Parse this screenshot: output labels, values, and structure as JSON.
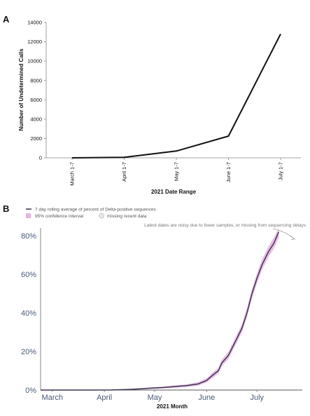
{
  "panels": {
    "a_letter": "A",
    "b_letter": "B"
  },
  "chart_data": [
    {
      "id": "A",
      "type": "line",
      "title": "",
      "xlabel": "2021 Date Range",
      "ylabel": "Number of Undetermined Calls",
      "categories": [
        "March 1-7",
        "April 1-7",
        "May 1-7",
        "June 1-7",
        "July 1-7"
      ],
      "series": [
        {
          "values": [
            0,
            50,
            700,
            2250,
            12800
          ],
          "color": "#111111"
        }
      ],
      "ylim": [
        0,
        14000
      ],
      "yticks": [
        0,
        2000,
        4000,
        6000,
        8000,
        10000,
        12000,
        14000
      ],
      "grid": false
    },
    {
      "id": "B",
      "type": "line",
      "title": "",
      "xlabel": "2021 Month",
      "ylabel": "",
      "xlim": [
        "2021-02-22",
        "2021-07-28"
      ],
      "xticks": [
        {
          "date": "2021-03-01",
          "label": "March"
        },
        {
          "date": "2021-04-01",
          "label": "April"
        },
        {
          "date": "2021-05-01",
          "label": "May"
        },
        {
          "date": "2021-06-01",
          "label": "June"
        },
        {
          "date": "2021-07-01",
          "label": "July"
        }
      ],
      "ylim": [
        0,
        84
      ],
      "yticks": [
        {
          "value": 0,
          "label": "0%"
        },
        {
          "value": 20,
          "label": "20%"
        },
        {
          "value": 40,
          "label": "40%"
        },
        {
          "value": 60,
          "label": "60%"
        },
        {
          "value": 80,
          "label": "80%"
        }
      ],
      "legend": {
        "placement": "top-left",
        "items": [
          {
            "label": "7 day rolling average of percent of Delta-positive sequences",
            "symbol": "line",
            "color": "#3a3550"
          },
          {
            "label": "95% confidence interval",
            "symbol": "swatch",
            "color": "#e6b3e0"
          },
          {
            "label": "missing recent data",
            "symbol": "hatch",
            "color": "#bbbbbb"
          }
        ]
      },
      "annotation": "Latest dates are noisy due to fewer samples, or missing from sequencing delays",
      "colors": {
        "line": "#3a3550",
        "ci": "#e6b3e0",
        "axis_text": "#4a5a78"
      },
      "series": [
        {
          "name": "7 day rolling average of percent of Delta-positive sequences",
          "points": [
            [
              "2021-02-22",
              0.0
            ],
            [
              "2021-03-15",
              0.0
            ],
            [
              "2021-04-05",
              0.05
            ],
            [
              "2021-04-15",
              0.3
            ],
            [
              "2021-04-22",
              0.6
            ],
            [
              "2021-04-29",
              1.0
            ],
            [
              "2021-05-06",
              1.3
            ],
            [
              "2021-05-13",
              1.8
            ],
            [
              "2021-05-20",
              2.3
            ],
            [
              "2021-05-27",
              3.2
            ],
            [
              "2021-06-01",
              5.0
            ],
            [
              "2021-06-05",
              8.0
            ],
            [
              "2021-06-08",
              10.0
            ],
            [
              "2021-06-10",
              14.0
            ],
            [
              "2021-06-14",
              18.0
            ],
            [
              "2021-06-18",
              25.0
            ],
            [
              "2021-06-22",
              32.0
            ],
            [
              "2021-06-25",
              40.0
            ],
            [
              "2021-06-28",
              50.0
            ],
            [
              "2021-07-01",
              58.0
            ],
            [
              "2021-07-04",
              65.0
            ],
            [
              "2021-07-08",
              72.0
            ],
            [
              "2021-07-11",
              76.0
            ],
            [
              "2021-07-14",
              82.0
            ]
          ],
          "ci_halfwidth": [
            0.2,
            0.2,
            0.2,
            0.3,
            0.3,
            0.4,
            0.5,
            0.6,
            0.7,
            0.9,
            1.1,
            1.4,
            1.5,
            1.7,
            1.9,
            2.0,
            2.2,
            2.3,
            2.5,
            2.6,
            2.7,
            2.8,
            2.9,
            3.0
          ]
        }
      ]
    }
  ]
}
